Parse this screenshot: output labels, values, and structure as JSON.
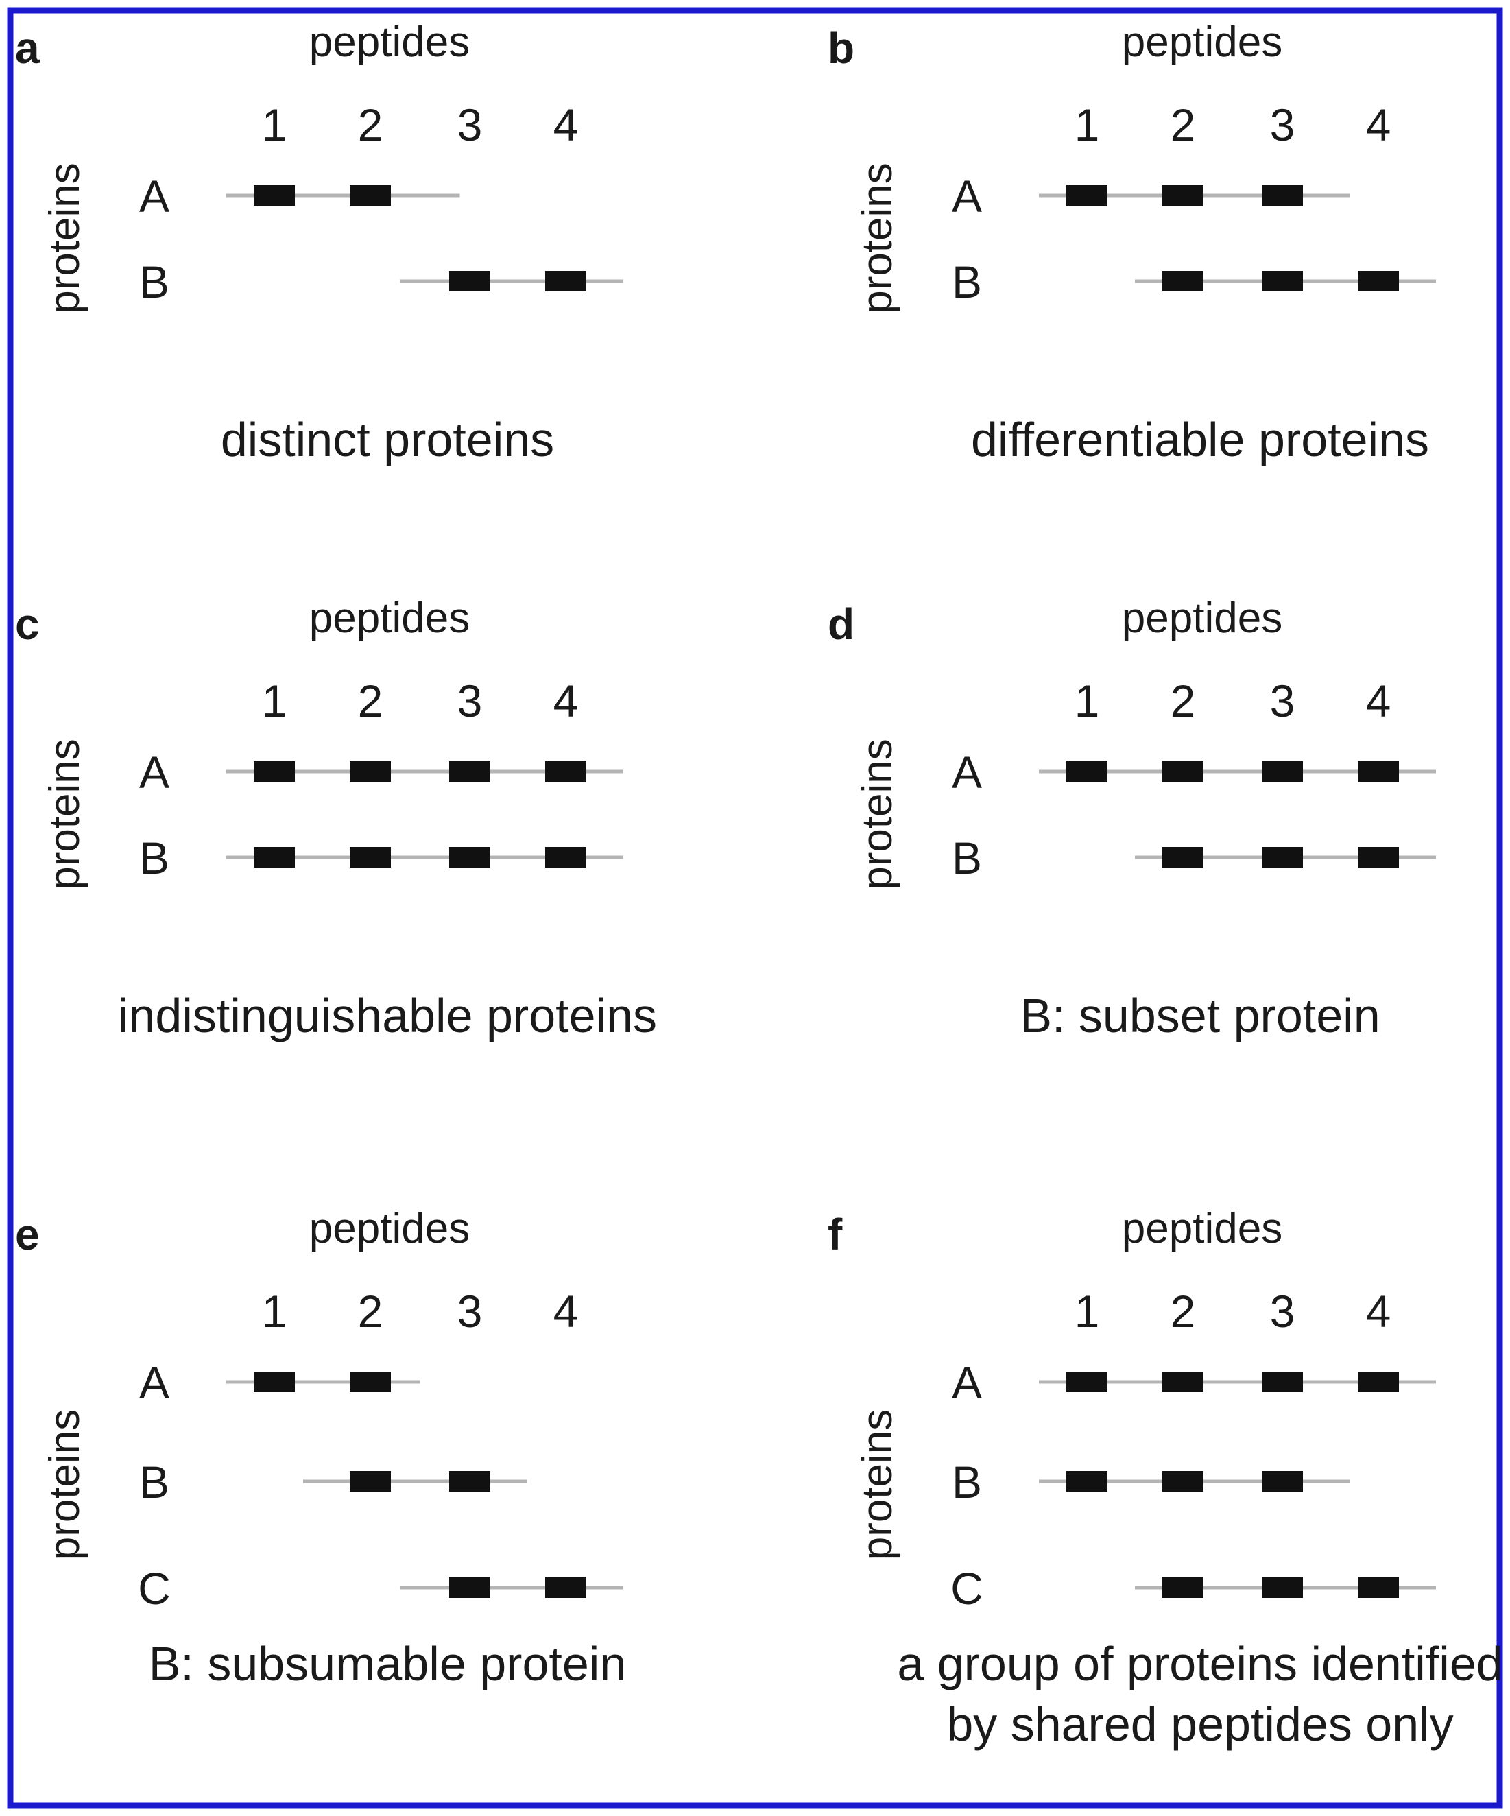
{
  "border_color": "#1a1acc",
  "panels": [
    {
      "label": "a",
      "header": "peptides",
      "y_label": "proteins",
      "peptide_numbers": [
        "1",
        "2",
        "3",
        "4"
      ],
      "rows": [
        {
          "name": "A",
          "line_span": [
            0.5,
            2.9
          ],
          "peptides": [
            1,
            2
          ]
        },
        {
          "name": "B",
          "line_span": [
            2.3,
            4.6
          ],
          "peptides": [
            3,
            4
          ]
        }
      ],
      "caption": [
        "distinct proteins"
      ]
    },
    {
      "label": "b",
      "header": "peptides",
      "y_label": "proteins",
      "peptide_numbers": [
        "1",
        "2",
        "3",
        "4"
      ],
      "rows": [
        {
          "name": "A",
          "line_span": [
            0.5,
            3.7
          ],
          "peptides": [
            1,
            2,
            3
          ]
        },
        {
          "name": "B",
          "line_span": [
            1.5,
            4.6
          ],
          "peptides": [
            2,
            3,
            4
          ]
        }
      ],
      "caption": [
        "differentiable proteins"
      ]
    },
    {
      "label": "c",
      "header": "peptides",
      "y_label": "proteins",
      "peptide_numbers": [
        "1",
        "2",
        "3",
        "4"
      ],
      "rows": [
        {
          "name": "A",
          "line_span": [
            0.5,
            4.6
          ],
          "peptides": [
            1,
            2,
            3,
            4
          ]
        },
        {
          "name": "B",
          "line_span": [
            0.5,
            4.6
          ],
          "peptides": [
            1,
            2,
            3,
            4
          ]
        }
      ],
      "caption": [
        "indistinguishable proteins"
      ]
    },
    {
      "label": "d",
      "header": "peptides",
      "y_label": "proteins",
      "peptide_numbers": [
        "1",
        "2",
        "3",
        "4"
      ],
      "rows": [
        {
          "name": "A",
          "line_span": [
            0.5,
            4.6
          ],
          "peptides": [
            1,
            2,
            3,
            4
          ]
        },
        {
          "name": "B",
          "line_span": [
            1.5,
            4.6
          ],
          "peptides": [
            2,
            3,
            4
          ]
        }
      ],
      "caption": [
        "B: subset protein"
      ]
    },
    {
      "label": "e",
      "header": "peptides",
      "y_label": "proteins",
      "peptide_numbers": [
        "1",
        "2",
        "3",
        "4"
      ],
      "rows": [
        {
          "name": "A",
          "line_span": [
            0.5,
            2.5
          ],
          "peptides": [
            1,
            2
          ]
        },
        {
          "name": "B",
          "line_span": [
            1.3,
            3.6
          ],
          "peptides": [
            2,
            3
          ]
        },
        {
          "name": "C",
          "line_span": [
            2.3,
            4.6
          ],
          "peptides": [
            3,
            4
          ]
        }
      ],
      "caption": [
        "B: subsumable protein"
      ]
    },
    {
      "label": "f",
      "header": "peptides",
      "y_label": "proteins",
      "peptide_numbers": [
        "1",
        "2",
        "3",
        "4"
      ],
      "rows": [
        {
          "name": "A",
          "line_span": [
            0.5,
            4.6
          ],
          "peptides": [
            1,
            2,
            3,
            4
          ]
        },
        {
          "name": "B",
          "line_span": [
            0.5,
            3.7
          ],
          "peptides": [
            1,
            2,
            3
          ]
        },
        {
          "name": "C",
          "line_span": [
            1.5,
            4.6
          ],
          "peptides": [
            2,
            3,
            4
          ]
        }
      ],
      "caption": [
        "a group of proteins identified",
        "by shared peptides only"
      ]
    }
  ]
}
